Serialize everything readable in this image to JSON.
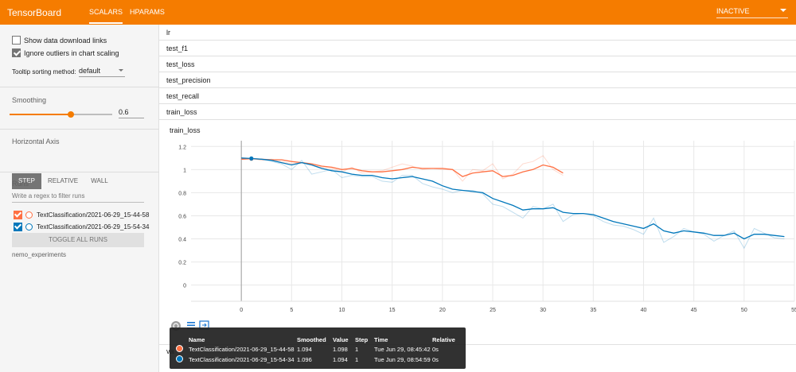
{
  "app": {
    "title": "TensorBoard"
  },
  "nav": {
    "tabs": [
      {
        "label": "SCALARS"
      },
      {
        "label": "HPARAMS"
      }
    ],
    "status": "INACTIVE"
  },
  "sidebar": {
    "show_download": "Show data download links",
    "ignore_outliers": "Ignore outliers in chart scaling",
    "tooltip_label": "Tooltip sorting method:",
    "tooltip_value": "default",
    "smoothing_label": "Smoothing",
    "smoothing_value": "0.6",
    "smoothing_level": 0.6,
    "axis_label": "Horizontal Axis",
    "axis_options": [
      "STEP",
      "RELATIVE",
      "WALL"
    ],
    "runs_label": "Runs",
    "filter_placeholder": "Write a regex to filter runs",
    "runs": [
      {
        "name": "TextClassification/2021-06-29_15-44-58",
        "color": "#ff7043"
      },
      {
        "name": "TextClassification/2021-06-29_15-54-34",
        "color": "#0077bb"
      }
    ],
    "toggle_label": "TOGGLE ALL RUNS",
    "logdir": "nemo_experiments"
  },
  "tags": [
    "lr",
    "test_f1",
    "test_loss",
    "test_precision",
    "test_recall",
    "train_loss"
  ],
  "card": {
    "title": "train_loss",
    "below_label": "va"
  },
  "chart_data": {
    "type": "line",
    "title": "train_loss",
    "xlim": [
      -5,
      55
    ],
    "ylim": [
      0,
      1.2
    ],
    "xticks": [
      0,
      5,
      10,
      15,
      20,
      25,
      30,
      35,
      40,
      45,
      50,
      55
    ],
    "yticks": [
      0,
      0.2,
      0.4,
      0.6,
      0.8,
      1,
      1.2
    ],
    "series": [
      {
        "name": "TextClassification/2021-06-29_15-44-58",
        "color": "#ff7043",
        "smoothed": [
          [
            0,
            1.09
          ],
          [
            1,
            1.094
          ],
          [
            2,
            1.09
          ],
          [
            3,
            1.085
          ],
          [
            4,
            1.085
          ],
          [
            5,
            1.07
          ],
          [
            6,
            1.06
          ],
          [
            7,
            1.05
          ],
          [
            8,
            1.03
          ],
          [
            9,
            1.02
          ],
          [
            10,
            1.0
          ],
          [
            11,
            1.01
          ],
          [
            12,
            0.99
          ],
          [
            13,
            0.98
          ],
          [
            14,
            0.98
          ],
          [
            15,
            0.99
          ],
          [
            16,
            1.0
          ],
          [
            17,
            1.02
          ],
          [
            18,
            1.01
          ],
          [
            19,
            1.01
          ],
          [
            20,
            1.01
          ],
          [
            21,
            1.0
          ],
          [
            22,
            0.94
          ],
          [
            23,
            0.97
          ],
          [
            24,
            0.98
          ],
          [
            25,
            0.99
          ],
          [
            26,
            0.94
          ],
          [
            27,
            0.95
          ],
          [
            28,
            0.98
          ],
          [
            29,
            1.0
          ],
          [
            30,
            1.04
          ],
          [
            31,
            1.02
          ],
          [
            32,
            0.97
          ]
        ],
        "raw": [
          [
            0,
            1.09
          ],
          [
            1,
            1.098
          ],
          [
            2,
            1.08
          ],
          [
            3,
            1.09
          ],
          [
            4,
            1.07
          ],
          [
            5,
            1.05
          ],
          [
            6,
            1.06
          ],
          [
            7,
            1.04
          ],
          [
            8,
            1.02
          ],
          [
            9,
            1.01
          ],
          [
            10,
            0.98
          ],
          [
            11,
            1.02
          ],
          [
            12,
            0.97
          ],
          [
            13,
            0.98
          ],
          [
            14,
            0.99
          ],
          [
            15,
            1.02
          ],
          [
            16,
            1.05
          ],
          [
            17,
            1.03
          ],
          [
            18,
            1.0
          ],
          [
            19,
            1.01
          ],
          [
            20,
            1.0
          ],
          [
            21,
            1.0
          ],
          [
            22,
            0.9
          ],
          [
            23,
            1.0
          ],
          [
            24,
            0.99
          ],
          [
            25,
            1.05
          ],
          [
            26,
            0.92
          ],
          [
            27,
            0.96
          ],
          [
            28,
            1.05
          ],
          [
            29,
            1.07
          ],
          [
            30,
            1.12
          ],
          [
            31,
            1.0
          ],
          [
            32,
            0.95
          ]
        ]
      },
      {
        "name": "TextClassification/2021-06-29_15-54-34",
        "color": "#0077bb",
        "smoothed": [
          [
            0,
            1.1
          ],
          [
            1,
            1.096
          ],
          [
            2,
            1.09
          ],
          [
            3,
            1.08
          ],
          [
            4,
            1.06
          ],
          [
            5,
            1.04
          ],
          [
            6,
            1.06
          ],
          [
            7,
            1.04
          ],
          [
            8,
            1.01
          ],
          [
            9,
            0.99
          ],
          [
            10,
            0.98
          ],
          [
            11,
            0.96
          ],
          [
            12,
            0.95
          ],
          [
            13,
            0.95
          ],
          [
            14,
            0.93
          ],
          [
            15,
            0.92
          ],
          [
            16,
            0.93
          ],
          [
            17,
            0.94
          ],
          [
            18,
            0.92
          ],
          [
            19,
            0.9
          ],
          [
            20,
            0.86
          ],
          [
            21,
            0.83
          ],
          [
            22,
            0.82
          ],
          [
            23,
            0.81
          ],
          [
            24,
            0.8
          ],
          [
            25,
            0.75
          ],
          [
            26,
            0.72
          ],
          [
            27,
            0.69
          ],
          [
            28,
            0.65
          ],
          [
            29,
            0.66
          ],
          [
            30,
            0.66
          ],
          [
            31,
            0.67
          ],
          [
            32,
            0.63
          ],
          [
            33,
            0.62
          ],
          [
            34,
            0.62
          ],
          [
            35,
            0.61
          ],
          [
            36,
            0.58
          ],
          [
            37,
            0.55
          ],
          [
            38,
            0.53
          ],
          [
            39,
            0.51
          ],
          [
            40,
            0.49
          ],
          [
            41,
            0.53
          ],
          [
            42,
            0.47
          ],
          [
            43,
            0.45
          ],
          [
            44,
            0.47
          ],
          [
            45,
            0.46
          ],
          [
            46,
            0.45
          ],
          [
            47,
            0.43
          ],
          [
            48,
            0.43
          ],
          [
            49,
            0.45
          ],
          [
            50,
            0.4
          ],
          [
            51,
            0.44
          ],
          [
            52,
            0.44
          ],
          [
            53,
            0.43
          ],
          [
            54,
            0.42
          ]
        ],
        "raw": [
          [
            0,
            1.1
          ],
          [
            1,
            1.094
          ],
          [
            2,
            1.09
          ],
          [
            3,
            1.07
          ],
          [
            4,
            1.05
          ],
          [
            5,
            1.0
          ],
          [
            6,
            1.08
          ],
          [
            7,
            0.96
          ],
          [
            8,
            0.98
          ],
          [
            9,
            1.0
          ],
          [
            10,
            0.93
          ],
          [
            11,
            0.95
          ],
          [
            12,
            0.94
          ],
          [
            13,
            0.94
          ],
          [
            14,
            0.9
          ],
          [
            15,
            0.89
          ],
          [
            16,
            0.95
          ],
          [
            17,
            0.95
          ],
          [
            18,
            0.88
          ],
          [
            19,
            0.85
          ],
          [
            20,
            0.83
          ],
          [
            21,
            0.8
          ],
          [
            22,
            0.82
          ],
          [
            23,
            0.82
          ],
          [
            24,
            0.79
          ],
          [
            25,
            0.7
          ],
          [
            26,
            0.68
          ],
          [
            27,
            0.63
          ],
          [
            28,
            0.58
          ],
          [
            29,
            0.68
          ],
          [
            30,
            0.66
          ],
          [
            31,
            0.7
          ],
          [
            32,
            0.55
          ],
          [
            33,
            0.61
          ],
          [
            34,
            0.62
          ],
          [
            35,
            0.6
          ],
          [
            36,
            0.55
          ],
          [
            37,
            0.52
          ],
          [
            38,
            0.51
          ],
          [
            39,
            0.48
          ],
          [
            40,
            0.44
          ],
          [
            41,
            0.58
          ],
          [
            42,
            0.37
          ],
          [
            43,
            0.42
          ],
          [
            44,
            0.49
          ],
          [
            45,
            0.46
          ],
          [
            46,
            0.44
          ],
          [
            47,
            0.38
          ],
          [
            48,
            0.43
          ],
          [
            49,
            0.47
          ],
          [
            50,
            0.32
          ],
          [
            51,
            0.49
          ],
          [
            52,
            0.45
          ],
          [
            53,
            0.41
          ],
          [
            54,
            0.4
          ]
        ]
      }
    ]
  },
  "tooltip": {
    "headers": [
      "Name",
      "Smoothed",
      "Value",
      "Step",
      "Time",
      "Relative"
    ],
    "rows": [
      {
        "name": "TextClassification/2021-06-29_15-44-58",
        "smoothed": "1.094",
        "value": "1.098",
        "step": "1",
        "time": "Tue Jun 29, 08:45:42",
        "relative": "0s",
        "color": "#ff7043"
      },
      {
        "name": "TextClassification/2021-06-29_15-54-34",
        "smoothed": "1.096",
        "value": "1.094",
        "step": "1",
        "time": "Tue Jun 29, 08:54:59",
        "relative": "0s",
        "color": "#0077bb"
      }
    ]
  }
}
